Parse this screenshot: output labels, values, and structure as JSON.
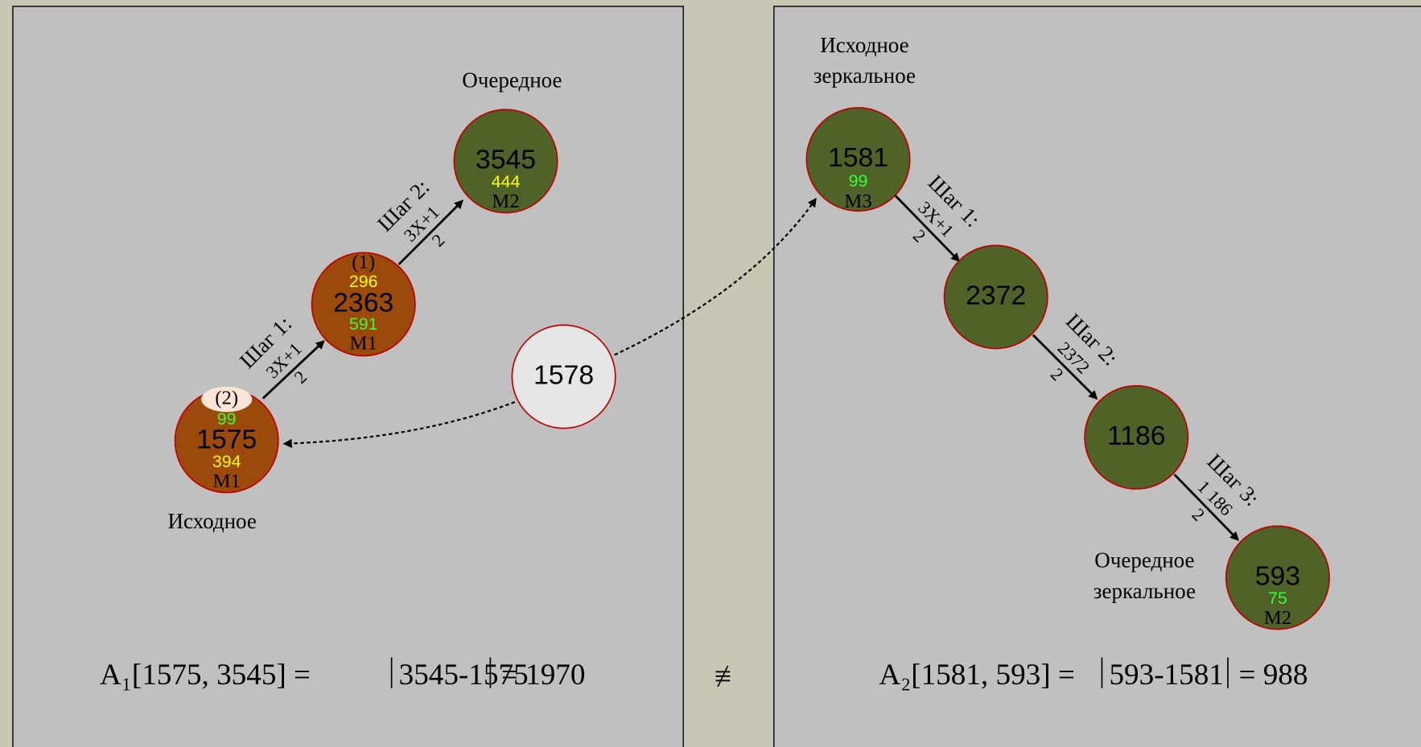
{
  "left": {
    "label_next": "Очередное",
    "label_start": "Исходное",
    "nodes": [
      {
        "order": "(2)",
        "green": "99",
        "value": "1575",
        "yellow": "394",
        "mark": "М1"
      },
      {
        "order": "(1)",
        "yellow": "296",
        "value": "2363",
        "green": "591",
        "mark": "М1"
      },
      {
        "value": "3545",
        "yellow": "444",
        "mark": "М2"
      }
    ],
    "steps": [
      {
        "label": "Шаг 1:",
        "numerator": "3X+1",
        "denominator": "2"
      },
      {
        "label": "Шаг 2:",
        "numerator": "3X+1",
        "denominator": "2"
      }
    ],
    "formula": {
      "lhs": "A₁[1575, 3545] =",
      "abs": "3545-1575",
      "rhs": "= 1970"
    }
  },
  "middle": {
    "value": "1578",
    "symbol": "≢"
  },
  "right": {
    "label_start": [
      "Исходное",
      "зеркальное"
    ],
    "label_next": [
      "Очередное",
      "зеркальное"
    ],
    "nodes": [
      {
        "value": "1581",
        "green": "99",
        "mark": "М3"
      },
      {
        "value": "2372"
      },
      {
        "value": "1186"
      },
      {
        "value": "593",
        "green": "75",
        "mark": "М2"
      }
    ],
    "steps": [
      {
        "label": "Шаг 1:",
        "numerator": "3X+1",
        "denominator": "2"
      },
      {
        "label": "Шаг 2:",
        "numerator": "2372",
        "denominator": "2"
      },
      {
        "label": "Шаг 3:",
        "numerator": "1 186",
        "denominator": "2"
      }
    ],
    "formula": {
      "lhs": "A₂[1581, 593] =",
      "abs": "593-1581",
      "rhs": "= 988"
    }
  }
}
